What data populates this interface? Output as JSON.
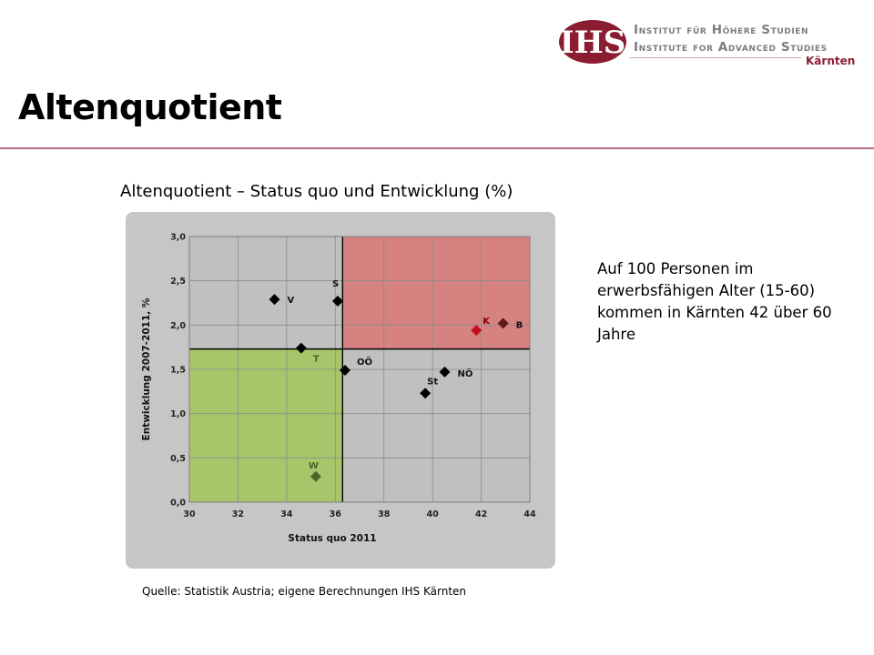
{
  "logo": {
    "mark_text": "IHS",
    "line1": "Institut für Höhere Studien",
    "line2": "Institute for Advanced Studies",
    "line3": "Kärnten"
  },
  "page": {
    "title": "Altenquotient",
    "chart_heading": "Altenquotient – Status quo und Entwicklung (%)",
    "side_text": "Auf 100 Personen im erwerbsfähigen Alter (15-60) kommen in Kärnten 42 über 60 Jahre",
    "source": "Quelle: Statistik Austria; eigene Berechnungen IHS Kärnten"
  },
  "chart_data": {
    "type": "scatter",
    "xlabel": "Status quo 2011",
    "ylabel": "Entwicklung 2007-2011, %",
    "xlim": [
      30,
      44
    ],
    "ylim": [
      0,
      3
    ],
    "x_ticks": [
      "30",
      "32",
      "34",
      "36",
      "38",
      "40",
      "42",
      "44"
    ],
    "y_ticks": [
      "0,0",
      "0,5",
      "1,0",
      "1,5",
      "2,0",
      "2,5",
      "3,0"
    ],
    "grid": true,
    "reference_lines": {
      "x": 36.3,
      "y": 1.73
    },
    "quadrants": [
      {
        "name": "top-right",
        "color": "#d58280"
      },
      {
        "name": "bottom-left",
        "color": "#a7c66a"
      }
    ],
    "points": [
      {
        "label": "V",
        "x": 33.5,
        "y": 2.29,
        "color": "#000000"
      },
      {
        "label": "S",
        "x": 36.1,
        "y": 2.27,
        "color": "#000000"
      },
      {
        "label": "T",
        "x": 34.6,
        "y": 1.74,
        "color": "#000000",
        "label_color": "#4f6228"
      },
      {
        "label": "OÖ",
        "x": 36.4,
        "y": 1.49,
        "color": "#000000"
      },
      {
        "label": "NÖ",
        "x": 40.5,
        "y": 1.47,
        "color": "#000000"
      },
      {
        "label": "St",
        "x": 39.7,
        "y": 1.23,
        "color": "#000000"
      },
      {
        "label": "K",
        "x": 41.8,
        "y": 1.94,
        "color": "#c0111b",
        "label_color": "#8b0000"
      },
      {
        "label": "B",
        "x": 42.9,
        "y": 2.02,
        "color": "#5c1a1a"
      },
      {
        "label": "W",
        "x": 35.2,
        "y": 0.29,
        "color": "#4f6228",
        "label_color": "#4f6228"
      }
    ]
  }
}
